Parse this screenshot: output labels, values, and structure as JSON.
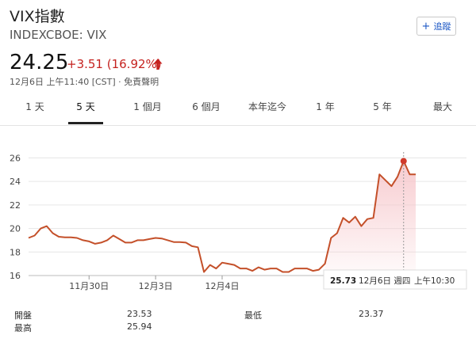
{
  "header": {
    "title": "VIX指數",
    "exchange": "INDEXCBOE: VIX",
    "follow_label": "追蹤"
  },
  "quote": {
    "price": "24.25",
    "change": "+3.51 (16.92%)",
    "timestamp": "12月6日 上午11:40 [CST] · 免責聲明"
  },
  "tabs": [
    {
      "label": "1 天"
    },
    {
      "label": "5 天"
    },
    {
      "label": "1 個月"
    },
    {
      "label": "6 個月"
    },
    {
      "label": "本年迄今"
    },
    {
      "label": "1 年"
    },
    {
      "label": "5 年"
    },
    {
      "label": "最大"
    }
  ],
  "active_tab": 1,
  "chart_data": {
    "type": "line",
    "ylim": [
      16,
      26.5
    ],
    "yticks": [
      16,
      18,
      20,
      22,
      24,
      26
    ],
    "xticks": [
      {
        "label": "11月30日",
        "index": 10
      },
      {
        "label": "12月3日",
        "index": 21
      },
      {
        "label": "12月4日",
        "index": 32
      }
    ],
    "values": [
      19.2,
      19.4,
      20.0,
      20.2,
      19.6,
      19.3,
      19.25,
      19.25,
      19.2,
      19.0,
      18.9,
      18.7,
      18.8,
      19.0,
      19.4,
      19.1,
      18.8,
      18.8,
      19.0,
      19.0,
      19.1,
      19.2,
      19.15,
      19.0,
      18.85,
      18.85,
      18.8,
      18.5,
      18.4,
      16.3,
      16.9,
      16.6,
      17.1,
      17.0,
      16.9,
      16.6,
      16.6,
      16.4,
      16.7,
      16.5,
      16.6,
      16.6,
      16.3,
      16.3,
      16.6,
      16.6,
      16.6,
      16.4,
      16.5,
      17.0,
      19.2,
      19.6,
      20.9,
      20.5,
      21.0,
      20.2,
      20.8,
      20.9,
      24.6,
      24.1,
      23.6,
      24.4,
      25.73,
      24.6,
      24.6
    ],
    "highlight": {
      "index": 62,
      "value": "25.73",
      "date": "12月6日 週四",
      "time": "上午10:30"
    },
    "colors": {
      "line": "#c4502a",
      "fill": "#f7c9cd",
      "highlight": "#d03a2b"
    }
  },
  "stats": [
    {
      "label": "開盤",
      "value": "23.53"
    },
    {
      "label": "最高",
      "value": "25.94"
    },
    {
      "label": "最低",
      "value": "23.37"
    }
  ]
}
